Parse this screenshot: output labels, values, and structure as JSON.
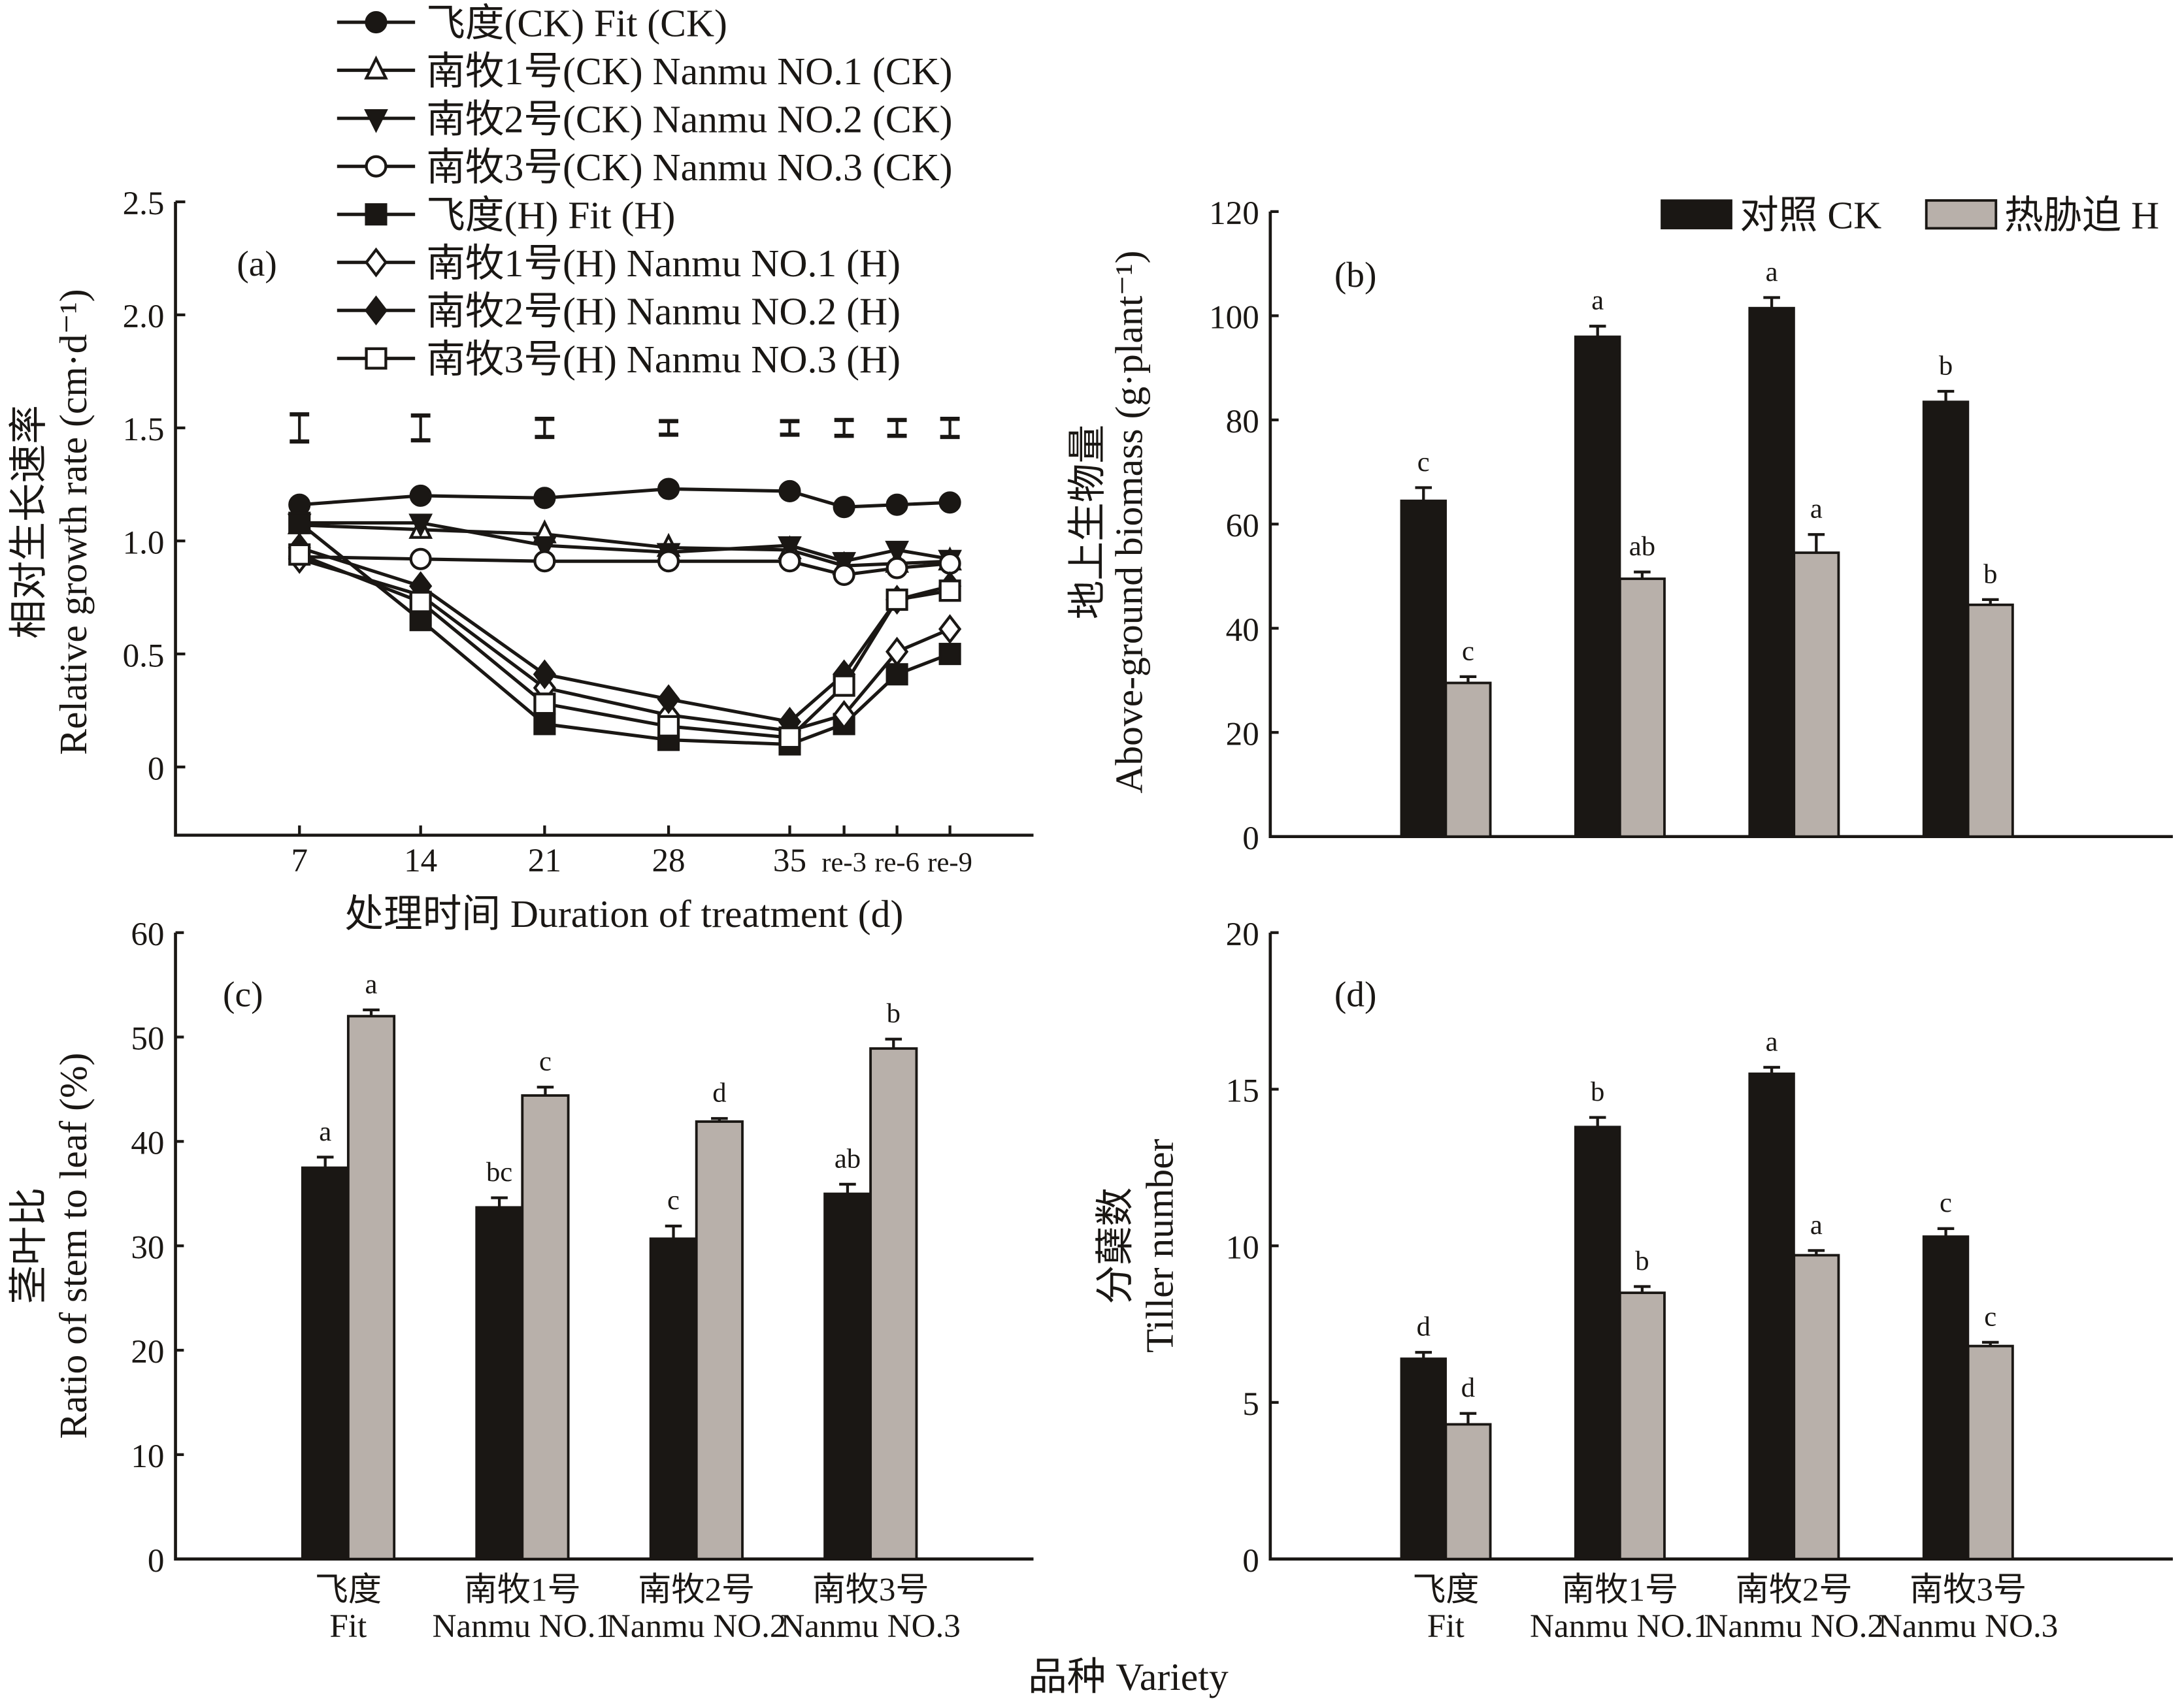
{
  "figure": {
    "bottom_label": "品种 Variety"
  },
  "chart_data": [
    {
      "id": "a",
      "type": "line",
      "panel_label": "(a)",
      "title": "",
      "xlabel": "处理时间 Duration of treatment (d)",
      "ylabel_cn": "相对生长速率",
      "ylabel_en": "Relative growth rate (cm·d⁻¹)",
      "x": [
        "7",
        "14",
        "21",
        "28",
        "35",
        "re-3",
        "re-6",
        "re-9"
      ],
      "yticks": [
        "0",
        "0.5",
        "1.0",
        "1.5",
        "2.0",
        "2.5"
      ],
      "ylim": [
        -0.3,
        2.5
      ],
      "grid": false,
      "legend_position": "top",
      "lsd_center": 1.5,
      "lsd": [
        0.12,
        0.11,
        0.08,
        0.06,
        0.06,
        0.07,
        0.07,
        0.08
      ],
      "series": [
        {
          "name": "飞度(CK) Fit (CK)",
          "marker": "circle",
          "filled": true,
          "values": [
            1.16,
            1.2,
            1.19,
            1.23,
            1.22,
            1.15,
            1.16,
            1.17
          ]
        },
        {
          "name": "南牧1号(CK) Nanmu NO.1 (CK)",
          "marker": "triangle-up",
          "filled": false,
          "values": [
            1.07,
            1.05,
            1.03,
            0.97,
            0.96,
            0.89,
            0.9,
            0.91
          ]
        },
        {
          "name": "南牧2号(CK) Nanmu NO.2 (CK)",
          "marker": "triangle-down",
          "filled": true,
          "values": [
            1.08,
            1.08,
            0.98,
            0.95,
            0.98,
            0.91,
            0.96,
            0.92
          ]
        },
        {
          "name": "南牧3号(CK) Nanmu NO.3 (CK)",
          "marker": "circle",
          "filled": false,
          "values": [
            0.93,
            0.92,
            0.91,
            0.91,
            0.91,
            0.85,
            0.88,
            0.9
          ]
        },
        {
          "name": "飞度(H) Fit (H)",
          "marker": "square",
          "filled": true,
          "values": [
            1.08,
            0.65,
            0.19,
            0.12,
            0.1,
            0.19,
            0.41,
            0.5
          ]
        },
        {
          "name": "南牧1号(H) Nanmu NO.1 (H)",
          "marker": "diamond",
          "filled": false,
          "values": [
            0.92,
            0.76,
            0.35,
            0.23,
            0.16,
            0.23,
            0.51,
            0.61
          ]
        },
        {
          "name": "南牧2号(H) Nanmu NO.2 (H)",
          "marker": "diamond",
          "filled": true,
          "values": [
            0.97,
            0.8,
            0.41,
            0.3,
            0.2,
            0.41,
            0.74,
            0.8
          ]
        },
        {
          "name": "南牧3号(H) Nanmu NO.3 (H)",
          "marker": "square",
          "filled": false,
          "values": [
            0.94,
            0.73,
            0.28,
            0.18,
            0.13,
            0.36,
            0.74,
            0.78
          ]
        }
      ]
    },
    {
      "id": "b",
      "type": "bar",
      "panel_label": "(b)",
      "ylabel_cn": "地上生物量",
      "ylabel_en": "Above-ground biomass (g·plant⁻¹)",
      "categories": [
        "Fit",
        "Nanmu NO.1",
        "Nanmu NO.2",
        "Nanmu NO.3"
      ],
      "yticks": [
        "0",
        "20",
        "40",
        "60",
        "80",
        "100",
        "120"
      ],
      "ylim": [
        0,
        120
      ],
      "legend_position": "top-right",
      "legend": [
        "对照 CK",
        "热胁迫 H"
      ],
      "series": [
        {
          "name": "对照 CK",
          "values": [
            64.5,
            96.0,
            101.5,
            83.5
          ],
          "errors": [
            2.5,
            2.0,
            2.0,
            2.0
          ],
          "letters": [
            "c",
            "a",
            "a",
            "b"
          ]
        },
        {
          "name": "热胁迫 H",
          "values": [
            29.5,
            49.5,
            54.5,
            44.5
          ],
          "errors": [
            1.2,
            1.3,
            3.5,
            1.0
          ],
          "letters": [
            "c",
            "ab",
            "a",
            "b"
          ]
        }
      ]
    },
    {
      "id": "c",
      "type": "bar",
      "panel_label": "(c)",
      "ylabel_cn": "茎叶比",
      "ylabel_en": "Ratio of stem to leaf (%)",
      "categories_cn": [
        "飞度",
        "南牧1号",
        "南牧2号",
        "南牧3号"
      ],
      "categories": [
        "Fit",
        "Nanmu NO.1",
        "Nanmu NO.2",
        "Nanmu NO.3"
      ],
      "yticks": [
        "0",
        "10",
        "20",
        "30",
        "40",
        "50",
        "60"
      ],
      "ylim": [
        0,
        60
      ],
      "series": [
        {
          "name": "对照 CK",
          "values": [
            37.5,
            33.7,
            30.7,
            35.0
          ],
          "errors": [
            1.0,
            0.9,
            1.2,
            0.9
          ],
          "letters": [
            "a",
            "bc",
            "c",
            "ab"
          ]
        },
        {
          "name": "热胁迫 H",
          "values": [
            52.0,
            44.4,
            41.9,
            48.9
          ],
          "errors": [
            0.6,
            0.8,
            0.3,
            0.9
          ],
          "letters": [
            "a",
            "c",
            "d",
            "b"
          ]
        }
      ]
    },
    {
      "id": "d",
      "type": "bar",
      "panel_label": "(d)",
      "ylabel_cn": "分蘖数",
      "ylabel_en": "Tiller number",
      "categories_cn": [
        "飞度",
        "南牧1号",
        "南牧2号",
        "南牧3号"
      ],
      "categories": [
        "Fit",
        "Nanmu NO.1",
        "Nanmu NO.2",
        "Nanmu NO.3"
      ],
      "yticks": [
        "0",
        "5",
        "10",
        "15",
        "20"
      ],
      "ylim": [
        0,
        20
      ],
      "series": [
        {
          "name": "对照 CK",
          "values": [
            6.4,
            13.8,
            15.5,
            10.3
          ],
          "errors": [
            0.2,
            0.3,
            0.2,
            0.25
          ],
          "letters": [
            "d",
            "b",
            "a",
            "c"
          ]
        },
        {
          "name": "热胁迫 H",
          "values": [
            4.3,
            8.5,
            9.7,
            6.8
          ],
          "errors": [
            0.35,
            0.2,
            0.15,
            0.12
          ],
          "letters": [
            "d",
            "b",
            "a",
            "c"
          ]
        }
      ]
    }
  ]
}
